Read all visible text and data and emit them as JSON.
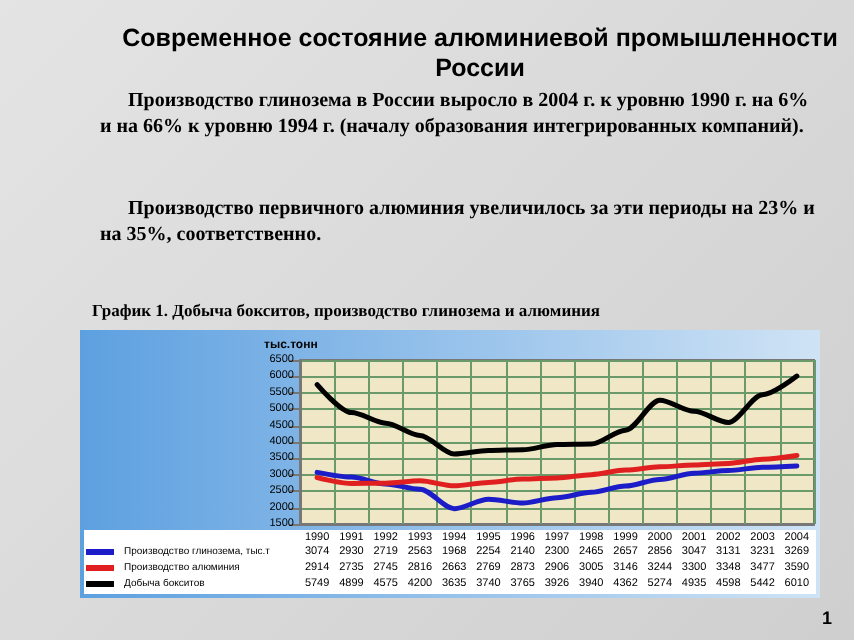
{
  "chart_data": {
    "type": "line",
    "title": "Современное состояние алюминиевой промышленности России",
    "annotations": [
      "Производство глинозема  в России выросло в 2004 г. к уровню 1990 г. на 6%  и на  66% к уровню 1994 г. (началу образования интегрированных компаний).",
      "Производство первичного алюминия увеличилось за эти периоды на 23%  и на 35%, соответственно.",
      "График 1. Добыча бокситов, производство глинозема и алюминия",
      "1"
    ],
    "ylabel": "тыс.тонн",
    "categories": [
      "1990",
      "1991",
      "1992",
      "1993",
      "1994",
      "1995",
      "1996",
      "1997",
      "1998",
      "1999",
      "2000",
      "2001",
      "2002",
      "2003",
      "2004"
    ],
    "series": [
      {
        "name": "Производство глинозема, тыс.т",
        "color": "#1c1cc8",
        "values": [
          3074,
          2930,
          2719,
          2563,
          1968,
          2254,
          2140,
          2300,
          2465,
          2657,
          2856,
          3047,
          3131,
          3231,
          3269
        ]
      },
      {
        "name": "Производство алюминия",
        "color": "#e02020",
        "values": [
          2914,
          2735,
          2745,
          2816,
          2663,
          2769,
          2873,
          2906,
          3005,
          3146,
          3244,
          3300,
          3348,
          3477,
          3590
        ]
      },
      {
        "name": "Добыча бокситов",
        "color": "#000000",
        "values": [
          5749,
          4899,
          4575,
          4200,
          3635,
          3740,
          3765,
          3926,
          3940,
          4362,
          5274,
          4935,
          4598,
          5442,
          6010
        ]
      }
    ],
    "ylim": [
      1500,
      6500
    ],
    "yticks": [
      1500,
      2000,
      2500,
      3000,
      3500,
      4000,
      4500,
      5000,
      5500,
      6000,
      6500
    ],
    "grid": true,
    "legend": "bottom left",
    "marker": "none",
    "line_style": "solid",
    "data_labels": true
  }
}
